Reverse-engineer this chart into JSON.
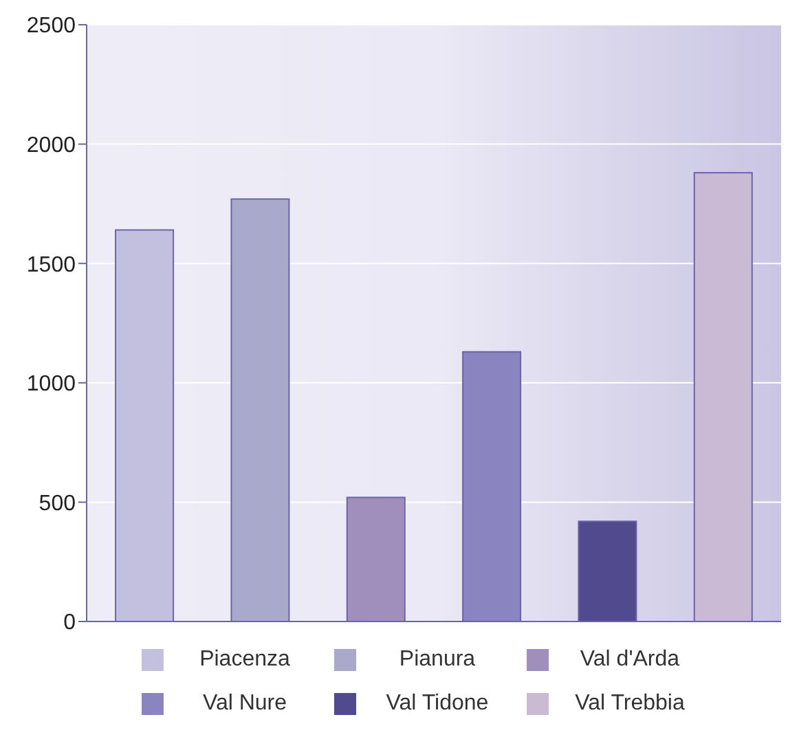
{
  "chart_data": {
    "type": "bar",
    "categories": [
      null,
      null,
      null,
      null,
      null,
      null
    ],
    "series": [
      {
        "name": "Piacenza",
        "color": "#c3bfdf",
        "values": [
          1640,
          null,
          null,
          null,
          null,
          null
        ]
      },
      {
        "name": "Pianura",
        "color": "#a9a9cb",
        "values": [
          null,
          1770,
          null,
          null,
          null,
          null
        ]
      },
      {
        "name": "Val d'Arda",
        "color": "#a08fbd",
        "values": [
          null,
          null,
          520,
          null,
          null,
          null
        ]
      },
      {
        "name": "Val Nure",
        "color": "#8a84c0",
        "values": [
          null,
          null,
          null,
          1130,
          null,
          null
        ]
      },
      {
        "name": "Val Tidone",
        "color": "#524a8f",
        "values": [
          null,
          null,
          null,
          null,
          420,
          null
        ]
      },
      {
        "name": "Val Trebbia",
        "color": "#cbbad3",
        "values": [
          null,
          null,
          null,
          null,
          null,
          1880
        ]
      }
    ],
    "ylim": [
      0,
      2500
    ],
    "yticks": [
      0,
      500,
      1000,
      1500,
      2000,
      2500
    ],
    "grid": "y",
    "legend": "bottom",
    "tick_labels": "y"
  }
}
